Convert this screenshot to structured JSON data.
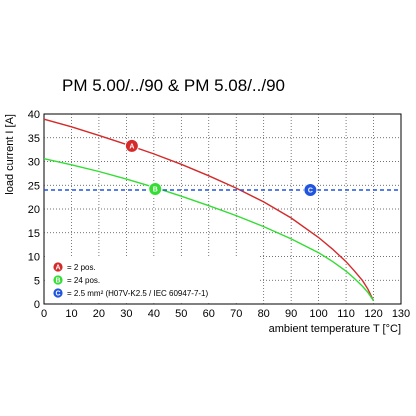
{
  "title": "PM 5.00/../90 & PM 5.08/../90",
  "chart_data": {
    "type": "line",
    "xlabel": "ambient temperature T [°C]",
    "ylabel": "load current I [A]",
    "xlim": [
      0,
      130
    ],
    "ylim": [
      0,
      40
    ],
    "xticks": [
      "0",
      "10",
      "20",
      "30",
      "40",
      "50",
      "60",
      "70",
      "80",
      "90",
      "100",
      "110",
      "120",
      "130"
    ],
    "yticks": [
      "0",
      "5",
      "10",
      "15",
      "20",
      "25",
      "30",
      "35",
      "40"
    ],
    "grid": true,
    "series": [
      {
        "marker": "A",
        "color": "#d42a2a",
        "style": "solid",
        "x": [
          0,
          10,
          20,
          30,
          40,
          50,
          60,
          70,
          80,
          90,
          100,
          105,
          110,
          113,
          116,
          118,
          120
        ],
        "y": [
          38.9,
          37.3,
          35.5,
          33.6,
          31.6,
          29.4,
          27.0,
          24.4,
          21.5,
          18.1,
          14.0,
          11.6,
          8.9,
          7.0,
          4.9,
          3.1,
          0.7
        ]
      },
      {
        "marker": "B",
        "color": "#33dd33",
        "style": "solid",
        "x": [
          0,
          10,
          20,
          30,
          40,
          50,
          60,
          70,
          80,
          90,
          100,
          105,
          110,
          113,
          116,
          118,
          120
        ],
        "y": [
          30.6,
          29.3,
          27.9,
          26.3,
          24.6,
          22.7,
          20.7,
          18.6,
          16.3,
          13.7,
          10.8,
          9.0,
          6.9,
          5.4,
          3.7,
          2.4,
          0.7
        ]
      },
      {
        "marker": "C",
        "color": "#2255dd",
        "style": "dashed",
        "x": [
          0,
          130
        ],
        "y": [
          24,
          24
        ]
      }
    ],
    "markers": [
      {
        "label": "A",
        "x": 32,
        "y": 33.3,
        "color": "#d42a2a"
      },
      {
        "label": "B",
        "x": 40.5,
        "y": 24.2,
        "color": "#33dd33"
      },
      {
        "label": "C",
        "x": 97,
        "y": 24,
        "color": "#2255dd"
      }
    ],
    "legend": {
      "placement": "bottom-left",
      "items": [
        {
          "label": "A",
          "text": "= 2 pos.",
          "color": "#d42a2a"
        },
        {
          "label": "B",
          "text": "= 24 pos.",
          "color": "#33dd33"
        },
        {
          "label": "C",
          "text": "= 2.5 mm² (H07V-K2.5 / IEC 60947-7-1)",
          "color": "#2255dd"
        }
      ]
    }
  }
}
